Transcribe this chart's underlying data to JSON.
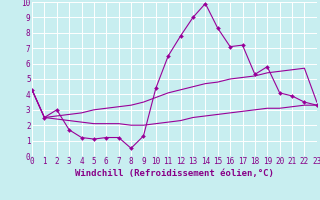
{
  "xlabel": "Windchill (Refroidissement éolien,°C)",
  "ylabel": "",
  "bg_color": "#c8eef0",
  "line_color": "#990099",
  "grid_color": "#ffffff",
  "xlim": [
    0,
    23
  ],
  "ylim": [
    0,
    10
  ],
  "xticks": [
    0,
    1,
    2,
    3,
    4,
    5,
    6,
    7,
    8,
    9,
    10,
    11,
    12,
    13,
    14,
    15,
    16,
    17,
    18,
    19,
    20,
    21,
    22,
    23
  ],
  "yticks": [
    0,
    1,
    2,
    3,
    4,
    5,
    6,
    7,
    8,
    9,
    10
  ],
  "line1_x": [
    0,
    1,
    2,
    3,
    4,
    5,
    6,
    7,
    8,
    9,
    10,
    11,
    12,
    13,
    14,
    15,
    16,
    17,
    18,
    19,
    20,
    21,
    22,
    23
  ],
  "line1_y": [
    4.3,
    2.5,
    3.0,
    1.7,
    1.2,
    1.1,
    1.2,
    1.2,
    0.5,
    1.3,
    4.4,
    6.5,
    7.8,
    9.0,
    9.9,
    8.3,
    7.1,
    7.2,
    5.3,
    5.8,
    4.1,
    3.9,
    3.5,
    3.3
  ],
  "line2_x": [
    0,
    1,
    2,
    3,
    4,
    5,
    6,
    7,
    8,
    9,
    10,
    11,
    12,
    13,
    14,
    15,
    16,
    17,
    18,
    19,
    20,
    21,
    22,
    23
  ],
  "line2_y": [
    4.3,
    2.5,
    2.6,
    2.7,
    2.8,
    3.0,
    3.1,
    3.2,
    3.3,
    3.5,
    3.8,
    4.1,
    4.3,
    4.5,
    4.7,
    4.8,
    5.0,
    5.1,
    5.2,
    5.4,
    5.5,
    5.6,
    5.7,
    3.5
  ],
  "line3_x": [
    0,
    1,
    2,
    3,
    4,
    5,
    6,
    7,
    8,
    9,
    10,
    11,
    12,
    13,
    14,
    15,
    16,
    17,
    18,
    19,
    20,
    21,
    22,
    23
  ],
  "line3_y": [
    4.3,
    2.5,
    2.4,
    2.3,
    2.2,
    2.1,
    2.1,
    2.1,
    2.0,
    2.0,
    2.1,
    2.2,
    2.3,
    2.5,
    2.6,
    2.7,
    2.8,
    2.9,
    3.0,
    3.1,
    3.1,
    3.2,
    3.3,
    3.3
  ],
  "tick_fontsize": 5.5,
  "xlabel_fontsize": 6.5,
  "text_color": "#880088"
}
